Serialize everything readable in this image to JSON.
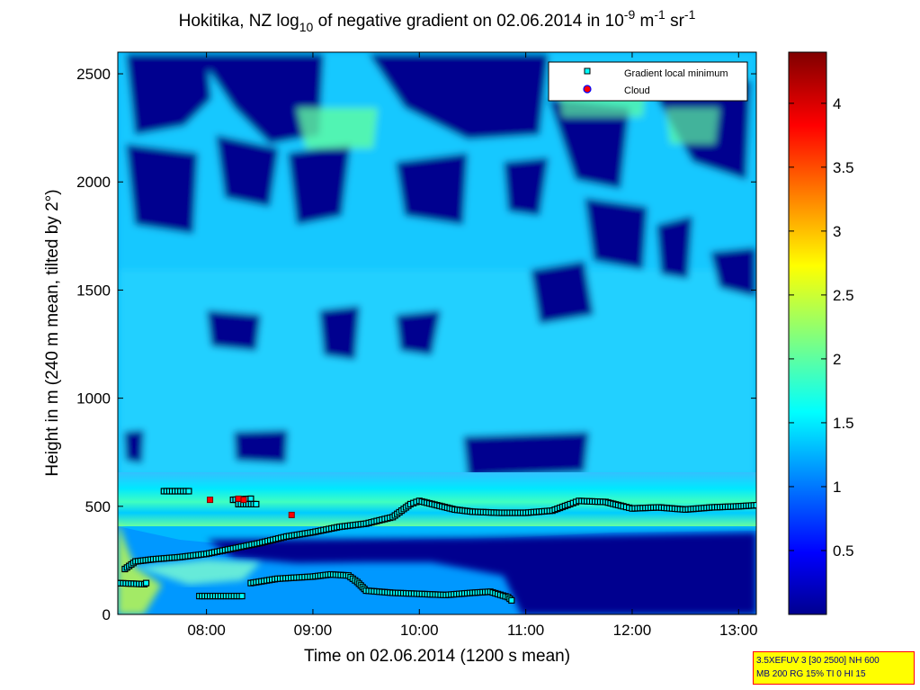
{
  "chart_data": {
    "type": "heatmap",
    "title": {
      "part1": "Hokitika, NZ log",
      "sub1": "10",
      "part2": " of negative gradient on 02.06.2014 in 10",
      "sup1": "-9",
      "part3": " m",
      "sup2": "-1",
      "part4": " sr",
      "sup3": "-1"
    },
    "xlabel": "Time on 02.06.2014 (1200 s mean)",
    "ylabel": "Height in m (240 m mean, tilted by 2°)",
    "xlim": [
      "07:10",
      "13:10"
    ],
    "ylim": [
      0,
      2600
    ],
    "x_ticks": [
      "08:00",
      "09:00",
      "10:00",
      "11:00",
      "12:00",
      "13:00"
    ],
    "y_ticks": [
      "0",
      "500",
      "1000",
      "1500",
      "2000",
      "2500"
    ],
    "colorbar": {
      "colormap": "jet",
      "range": [
        0,
        4.4
      ],
      "ticks": [
        "0.5",
        "1",
        "1.5",
        "2",
        "2.5",
        "3",
        "3.5",
        "4"
      ]
    },
    "legend": {
      "placement": "top-right",
      "entries": [
        {
          "label": "Gradient local minimum",
          "marker": "square",
          "color": "#00ffff"
        },
        {
          "label": "Cloud",
          "marker": "circle",
          "color": "#ff0000"
        }
      ]
    },
    "series": [
      {
        "name": "Gradient local minimum",
        "segments": [
          [
            [
              "07:10",
              145
            ],
            [
              "07:25",
              140
            ],
            [
              "07:26",
              145
            ]
          ],
          [
            [
              "07:14",
              210
            ],
            [
              "07:20",
              245
            ],
            [
              "07:30",
              255
            ],
            [
              "07:45",
              265
            ],
            [
              "08:00",
              280
            ],
            [
              "08:15",
              305
            ],
            [
              "08:30",
              330
            ],
            [
              "08:45",
              360
            ],
            [
              "09:00",
              380
            ],
            [
              "09:15",
              405
            ],
            [
              "09:30",
              420
            ],
            [
              "09:45",
              450
            ],
            [
              "09:55",
              510
            ],
            [
              "10:00",
              525
            ],
            [
              "10:10",
              505
            ],
            [
              "10:20",
              485
            ],
            [
              "10:30",
              475
            ],
            [
              "10:45",
              470
            ],
            [
              "11:00",
              470
            ],
            [
              "11:15",
              480
            ],
            [
              "11:25",
              510
            ],
            [
              "11:30",
              525
            ],
            [
              "11:45",
              520
            ],
            [
              "11:55",
              500
            ],
            [
              "12:00",
              490
            ],
            [
              "12:15",
              495
            ],
            [
              "12:30",
              485
            ],
            [
              "12:45",
              495
            ],
            [
              "13:00",
              500
            ],
            [
              "13:10",
              505
            ]
          ],
          [
            [
              "07:36",
              570
            ],
            [
              "07:50",
              570
            ]
          ],
          [
            [
              "08:15",
              530
            ],
            [
              "08:25",
              535
            ]
          ],
          [
            [
              "08:18",
              510
            ],
            [
              "08:28",
              510
            ]
          ],
          [
            [
              "07:56",
              85
            ],
            [
              "08:20",
              85
            ]
          ],
          [
            [
              "08:25",
              145
            ],
            [
              "08:40",
              165
            ],
            [
              "09:00",
              175
            ],
            [
              "09:10",
              185
            ],
            [
              "09:20",
              180
            ],
            [
              "09:25",
              150
            ],
            [
              "09:30",
              110
            ],
            [
              "09:45",
              100
            ],
            [
              "10:00",
              95
            ],
            [
              "10:15",
              90
            ],
            [
              "10:30",
              100
            ],
            [
              "10:40",
              105
            ],
            [
              "10:50",
              80
            ],
            [
              "10:52",
              65
            ]
          ]
        ]
      },
      {
        "name": "Cloud",
        "points": [
          [
            "08:02",
            530
          ],
          [
            "08:18",
            535
          ],
          [
            "08:21",
            530
          ],
          [
            "08:48",
            460
          ]
        ]
      }
    ]
  },
  "info_box": {
    "line1": "3.5XEFUV 3 [30 2500] NH 600",
    "line2": "MB 200 RG 15% TI 0 HI 15"
  }
}
